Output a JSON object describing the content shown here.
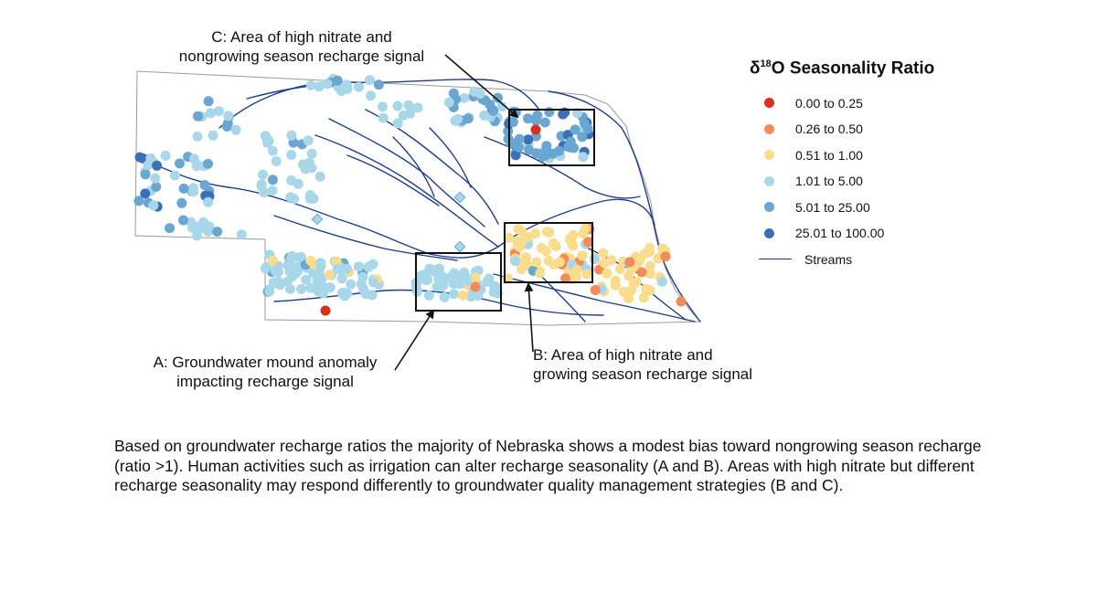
{
  "legend": {
    "title_prefix": "δ",
    "title_superscript": "18",
    "title_suffix": "O Seasonality  Ratio",
    "classes": [
      {
        "label": "0.00 to 0.25",
        "color": "#d7301f"
      },
      {
        "label": "0.26 to 0.50",
        "color": "#f28c5a"
      },
      {
        "label": "0.51 to 1.00",
        "color": "#f9dc8c"
      },
      {
        "label": "1.01 to 5.00",
        "color": "#a9d7ea"
      },
      {
        "label": "5.01 to 25.00",
        "color": "#6aa6d2"
      },
      {
        "label": "25.01 to 100.00",
        "color": "#3b6fb6"
      }
    ],
    "streams_label": "Streams",
    "streams_color": "#1b3f8a"
  },
  "annotations": {
    "c": {
      "line1": "C: Area of high nitrate and",
      "line2": "nongrowing season recharge signal"
    },
    "a": {
      "line1": "A: Groundwater mound anomaly",
      "line2": "impacting recharge signal"
    },
    "b": {
      "line1": "B: Area of high nitrate and",
      "line2": "growing season recharge signal"
    }
  },
  "caption": "Based on groundwater recharge ratios the majority of Nebraska shows a modest bias toward nongrowing season recharge (ratio >1). Human activities such as irrigation can alter recharge seasonality (A and B). Areas with high nitrate but different recharge seasonality may respond differently to groundwater quality management strategies (B and C)."
}
